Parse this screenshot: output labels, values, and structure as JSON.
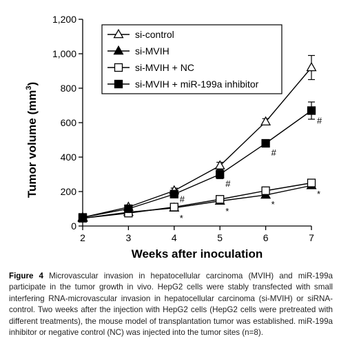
{
  "chart_data": {
    "type": "line",
    "title": "",
    "xlabel": "Weeks after inoculation",
    "ylabel": "Tumor volume (mm³)",
    "ylabel_main": "Tumor volume (mm",
    "ylabel_sup": "3",
    "ylabel_close": ")",
    "x": [
      2,
      3,
      4,
      5,
      6,
      7
    ],
    "xlim": [
      2,
      7
    ],
    "ylim": [
      0,
      1200
    ],
    "x_ticks": [
      "2",
      "3",
      "4",
      "5",
      "6",
      "7"
    ],
    "y_ticks": [
      "0",
      "200",
      "400",
      "600",
      "800",
      "1,000",
      "1,200"
    ],
    "y_tick_values": [
      0,
      200,
      400,
      600,
      800,
      1000,
      1200
    ],
    "grid": false,
    "legend_position": "top-left",
    "series": [
      {
        "name": "si-control",
        "marker": "triangle-open",
        "values": [
          50,
          110,
          205,
          350,
          605,
          920
        ],
        "errors": [
          8,
          12,
          15,
          20,
          18,
          70
        ]
      },
      {
        "name": "si-MVIH",
        "marker": "triangle-filled",
        "values": [
          45,
          80,
          105,
          145,
          180,
          235
        ],
        "errors": [
          6,
          8,
          10,
          10,
          10,
          15
        ]
      },
      {
        "name": "si-MVIH + NC",
        "marker": "square-open",
        "values": [
          45,
          75,
          110,
          155,
          205,
          250
        ],
        "errors": [
          6,
          8,
          10,
          10,
          12,
          15
        ]
      },
      {
        "name": "si-MVIH + miR-199a inhibitor",
        "marker": "square-filled",
        "values": [
          50,
          100,
          185,
          300,
          480,
          670
        ],
        "errors": [
          8,
          10,
          14,
          25,
          20,
          50
        ]
      }
    ],
    "annotations": [
      {
        "text": "#",
        "x": 4,
        "y": 155
      },
      {
        "text": "#",
        "x": 5,
        "y": 245
      },
      {
        "text": "#",
        "x": 6,
        "y": 425
      },
      {
        "text": "#",
        "x": 7,
        "y": 610
      },
      {
        "text": "*",
        "x": 4,
        "y": 45
      },
      {
        "text": "*",
        "x": 5,
        "y": 85
      },
      {
        "text": "*",
        "x": 6,
        "y": 125
      },
      {
        "text": "*",
        "x": 7,
        "y": 185
      }
    ]
  },
  "caption": {
    "label": "Figure 4",
    "text": "Microvascular invasion in hepatocellular carcinoma (MVIH) and miR-199a participate in the tumor growth in vivo. HepG2 cells were stably transfected with small interfering RNA-microvascular invasion in hepatocellular carcinoma (si-MVIH) or siRNA-control. Two weeks after the injection with HepG2 cells (HepG2 cells were pretreated with different treatments), the mouse model of transplantation tumor was established. miR-199a inhibitor or negative control (NC) was injected into the tumor sites (n=8)."
  }
}
